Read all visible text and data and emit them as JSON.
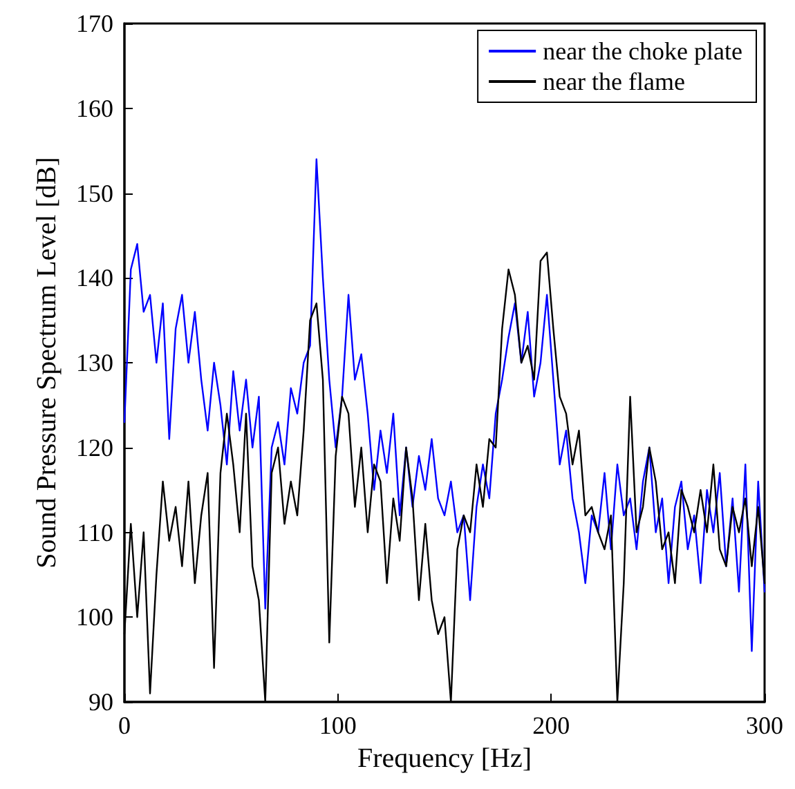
{
  "chart_data": {
    "type": "line",
    "xlabel": "Frequency [Hz]",
    "ylabel": "Sound Pressure Spectrum Level [dB]",
    "x": [
      0,
      3,
      6,
      9,
      12,
      15,
      18,
      21,
      24,
      27,
      30,
      33,
      36,
      39,
      42,
      45,
      48,
      51,
      54,
      57,
      60,
      63,
      66,
      69,
      72,
      75,
      78,
      81,
      84,
      87,
      90,
      93,
      96,
      99,
      102,
      105,
      108,
      111,
      114,
      117,
      120,
      123,
      126,
      129,
      132,
      135,
      138,
      141,
      144,
      147,
      150,
      153,
      156,
      159,
      162,
      165,
      168,
      171,
      174,
      177,
      180,
      183,
      186,
      189,
      192,
      195,
      198,
      201,
      204,
      207,
      210,
      213,
      216,
      219,
      222,
      225,
      228,
      231,
      234,
      237,
      240,
      243,
      246,
      249,
      252,
      255,
      258,
      261,
      264,
      267,
      270,
      273,
      276,
      279,
      282,
      285,
      288,
      291,
      294,
      297,
      300
    ],
    "series": [
      {
        "name": "near the choke plate",
        "color": "#0000ff",
        "values": [
          123,
          141,
          144,
          136,
          138,
          130,
          137,
          121,
          134,
          138,
          130,
          136,
          128,
          122,
          130,
          125,
          118,
          129,
          122,
          128,
          120,
          126,
          101,
          120,
          123,
          118,
          127,
          124,
          130,
          132,
          154,
          140,
          128,
          120,
          126,
          138,
          128,
          131,
          124,
          115,
          122,
          117,
          124,
          112,
          120,
          113,
          119,
          115,
          121,
          114,
          112,
          116,
          110,
          112,
          102,
          113,
          118,
          114,
          124,
          128,
          133,
          137,
          130,
          136,
          126,
          130,
          138,
          128,
          118,
          122,
          114,
          110,
          104,
          112,
          110,
          117,
          108,
          118,
          112,
          114,
          108,
          116,
          120,
          110,
          114,
          104,
          113,
          116,
          108,
          112,
          104,
          115,
          110,
          117,
          106,
          114,
          103,
          118,
          96,
          116,
          103
        ]
      },
      {
        "name": "near the flame",
        "color": "#000000",
        "values": [
          98,
          111,
          100,
          110,
          91,
          105,
          116,
          109,
          113,
          106,
          116,
          104,
          112,
          117,
          94,
          117,
          124,
          118,
          110,
          124,
          106,
          102,
          90,
          117,
          120,
          111,
          116,
          112,
          122,
          135,
          137,
          128,
          97,
          119,
          126,
          124,
          113,
          120,
          110,
          118,
          116,
          104,
          114,
          109,
          120,
          114,
          102,
          111,
          102,
          98,
          100,
          90,
          108,
          112,
          110,
          118,
          113,
          121,
          120,
          134,
          141,
          138,
          130,
          132,
          128,
          142,
          143,
          134,
          126,
          124,
          118,
          122,
          112,
          113,
          110,
          108,
          112,
          90,
          104,
          126,
          110,
          113,
          120,
          116,
          108,
          110,
          104,
          115,
          113,
          110,
          115,
          110,
          118,
          108,
          106,
          113,
          110,
          114,
          106,
          113,
          104
        ]
      }
    ],
    "xlim": [
      0,
      300
    ],
    "xticks": [
      0,
      100,
      200,
      300
    ],
    "ylim": [
      90,
      170
    ],
    "yticks": [
      90,
      100,
      110,
      120,
      130,
      140,
      150,
      160,
      170
    ],
    "grid": false,
    "legend": "top right",
    "marker": "none",
    "line_style": "solid"
  }
}
